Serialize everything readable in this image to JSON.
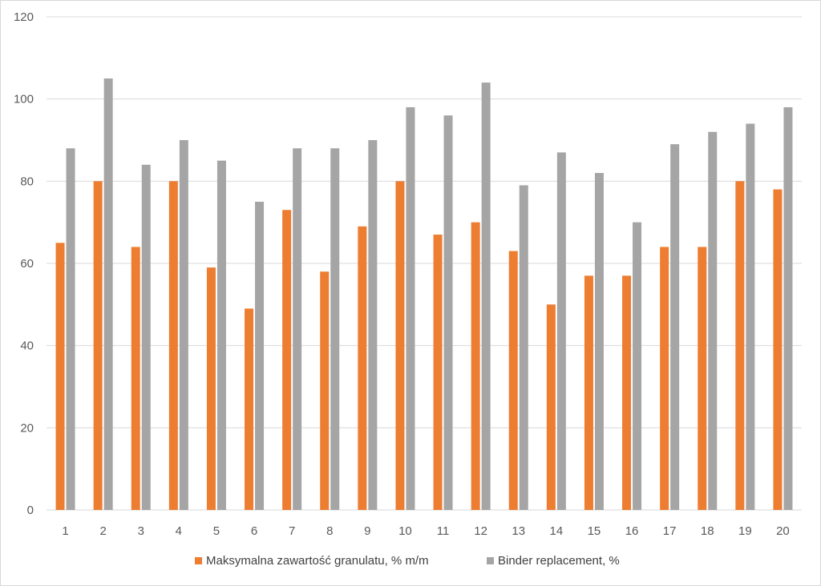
{
  "chart_data": {
    "type": "bar",
    "title": "",
    "xlabel": "",
    "ylabel": "",
    "categories": [
      "1",
      "2",
      "3",
      "4",
      "5",
      "6",
      "7",
      "8",
      "9",
      "10",
      "11",
      "12",
      "13",
      "14",
      "15",
      "16",
      "17",
      "18",
      "19",
      "20"
    ],
    "series": [
      {
        "name": "Maksymalna zawartość granulatu, % m/m",
        "color": "#ed7d31",
        "values": [
          65,
          80,
          64,
          80,
          59,
          49,
          73,
          58,
          69,
          80,
          67,
          70,
          63,
          50,
          57,
          57,
          64,
          64,
          80,
          78
        ]
      },
      {
        "name": "Binder replacement, %",
        "color": "#a5a5a5",
        "values": [
          88,
          105,
          84,
          90,
          85,
          75,
          88,
          88,
          90,
          98,
          96,
          104,
          79,
          87,
          82,
          70,
          89,
          92,
          94,
          98
        ]
      }
    ],
    "ylim": [
      0,
      120
    ],
    "yticks": [
      0,
      20,
      40,
      60,
      80,
      100,
      120
    ],
    "grid": true,
    "legend_position": "bottom"
  }
}
